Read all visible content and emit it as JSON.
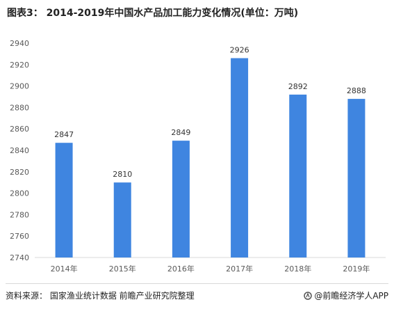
{
  "title": "图表3： 2014-2019年中国水产品加工能力变化情况(单位：万吨)",
  "footer": {
    "source": "资料来源： 国家渔业统计数据 前瞻产业研究院整理",
    "brand": "@前瞻经济学人APP"
  },
  "colors": {
    "bar": "#3f85e0",
    "axis": "#d9d9d9",
    "text": "#595959"
  },
  "chart_data": {
    "type": "bar",
    "categories": [
      "2014年",
      "2015年",
      "2016年",
      "2017年",
      "2018年",
      "2019年"
    ],
    "values": [
      2847,
      2810,
      2849,
      2926,
      2892,
      2888
    ],
    "ylim": [
      2740,
      2940
    ],
    "yticks": [
      2740,
      2760,
      2780,
      2800,
      2820,
      2840,
      2860,
      2880,
      2900,
      2920,
      2940
    ],
    "grid": false,
    "data_labels": true
  }
}
